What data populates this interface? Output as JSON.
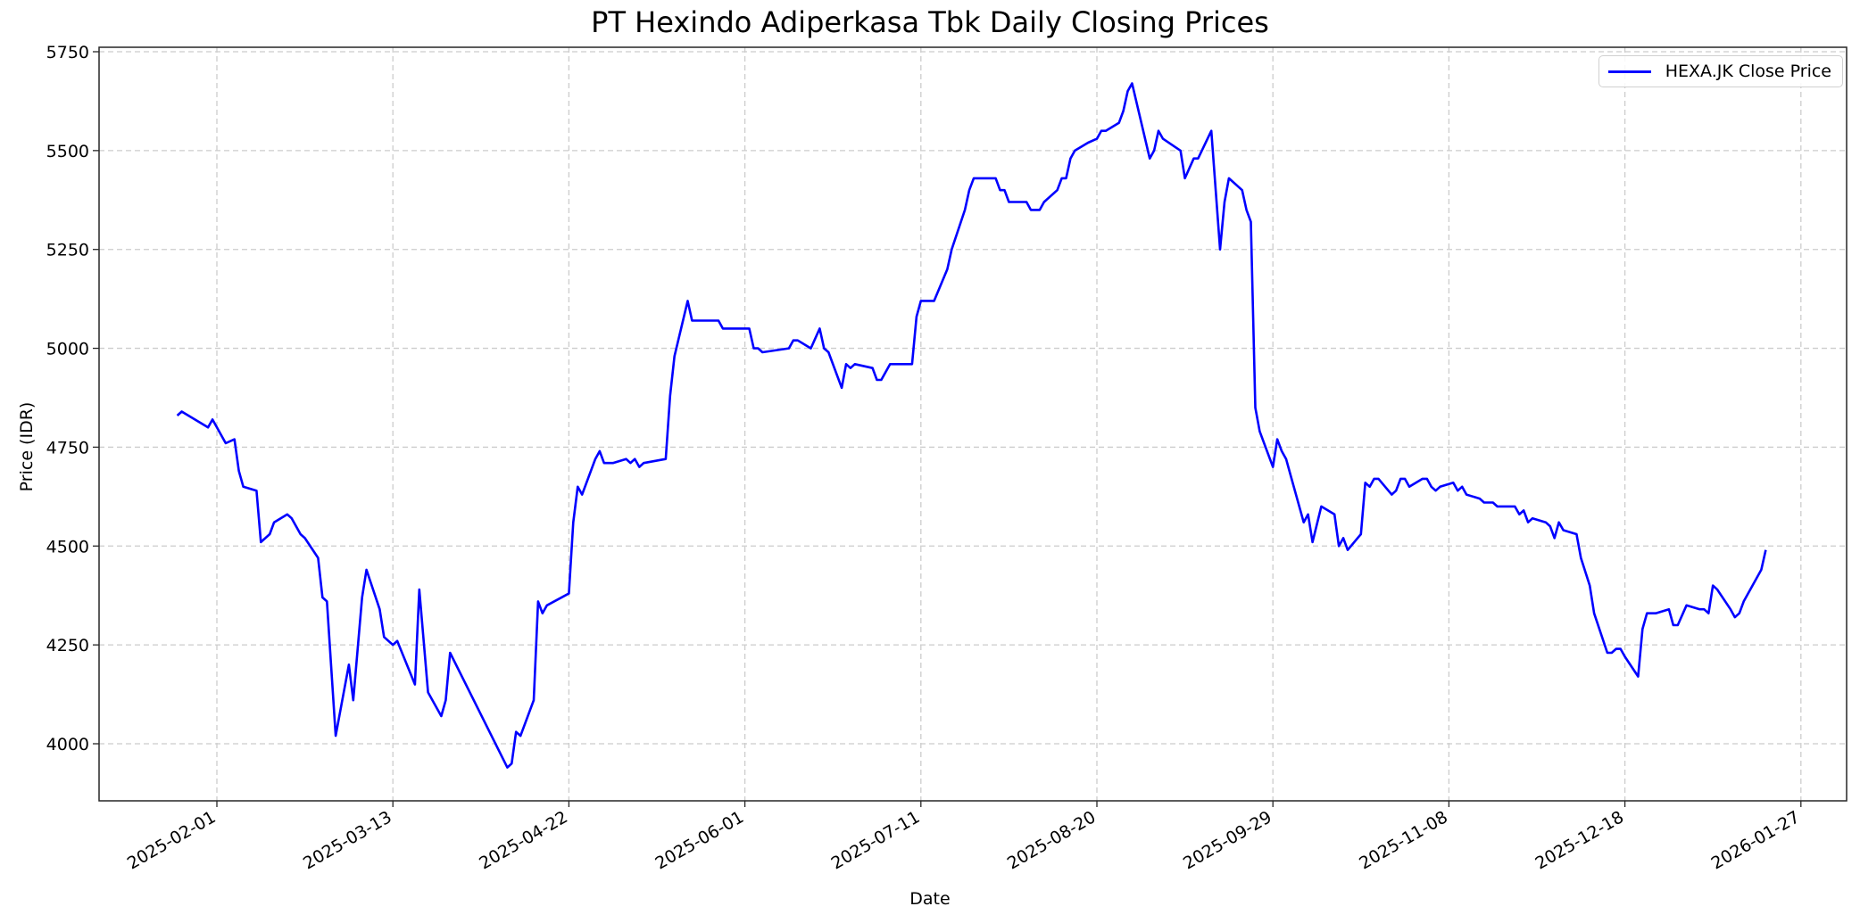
{
  "chart_data": {
    "type": "line",
    "title": "PT Hexindo Adiperkasa Tbk Daily Closing Prices",
    "xlabel": "Date",
    "ylabel": "Price (IDR)",
    "ylim": [
      3850,
      5760
    ],
    "xlim": [
      "2025-01-12",
      "2026-02-04"
    ],
    "yticks": [
      4000,
      4250,
      4500,
      4750,
      5000,
      5250,
      5500,
      5750
    ],
    "xticks": [
      "2025-02-01",
      "2025-03-13",
      "2025-04-22",
      "2025-06-01",
      "2025-07-11",
      "2025-08-20",
      "2025-09-29",
      "2025-11-08",
      "2025-12-18",
      "2026-01-27"
    ],
    "grid": true,
    "legend_position": "upper right",
    "series": [
      {
        "name": "HEXA.JK Close Price",
        "color": "#0000ff",
        "points": [
          [
            "2025-01-23",
            4830
          ],
          [
            "2025-01-24",
            4840
          ],
          [
            "2025-01-30",
            4800
          ],
          [
            "2025-01-31",
            4820
          ],
          [
            "2025-02-03",
            4760
          ],
          [
            "2025-02-05",
            4770
          ],
          [
            "2025-02-06",
            4690
          ],
          [
            "2025-02-07",
            4650
          ],
          [
            "2025-02-10",
            4640
          ],
          [
            "2025-02-11",
            4510
          ],
          [
            "2025-02-13",
            4530
          ],
          [
            "2025-02-14",
            4560
          ],
          [
            "2025-02-17",
            4580
          ],
          [
            "2025-02-18",
            4570
          ],
          [
            "2025-02-20",
            4530
          ],
          [
            "2025-02-21",
            4520
          ],
          [
            "2025-02-24",
            4470
          ],
          [
            "2025-02-25",
            4370
          ],
          [
            "2025-02-26",
            4360
          ],
          [
            "2025-02-28",
            4020
          ],
          [
            "2025-03-03",
            4200
          ],
          [
            "2025-03-04",
            4110
          ],
          [
            "2025-03-06",
            4370
          ],
          [
            "2025-03-07",
            4440
          ],
          [
            "2025-03-10",
            4340
          ],
          [
            "2025-03-11",
            4270
          ],
          [
            "2025-03-13",
            4250
          ],
          [
            "2025-03-14",
            4260
          ],
          [
            "2025-03-18",
            4150
          ],
          [
            "2025-03-19",
            4390
          ],
          [
            "2025-03-21",
            4130
          ],
          [
            "2025-03-24",
            4070
          ],
          [
            "2025-03-25",
            4110
          ],
          [
            "2025-03-26",
            4230
          ],
          [
            "2025-04-08",
            3940
          ],
          [
            "2025-04-09",
            3950
          ],
          [
            "2025-04-10",
            4030
          ],
          [
            "2025-04-11",
            4020
          ],
          [
            "2025-04-14",
            4110
          ],
          [
            "2025-04-15",
            4360
          ],
          [
            "2025-04-16",
            4330
          ],
          [
            "2025-04-17",
            4350
          ],
          [
            "2025-04-22",
            4380
          ],
          [
            "2025-04-23",
            4560
          ],
          [
            "2025-04-24",
            4650
          ],
          [
            "2025-04-25",
            4630
          ],
          [
            "2025-04-28",
            4720
          ],
          [
            "2025-04-29",
            4740
          ],
          [
            "2025-04-30",
            4710
          ],
          [
            "2025-05-02",
            4710
          ],
          [
            "2025-05-05",
            4720
          ],
          [
            "2025-05-06",
            4710
          ],
          [
            "2025-05-07",
            4720
          ],
          [
            "2025-05-08",
            4700
          ],
          [
            "2025-05-09",
            4710
          ],
          [
            "2025-05-14",
            4720
          ],
          [
            "2025-05-15",
            4880
          ],
          [
            "2025-05-16",
            4980
          ],
          [
            "2025-05-19",
            5120
          ],
          [
            "2025-05-20",
            5070
          ],
          [
            "2025-05-26",
            5070
          ],
          [
            "2025-05-27",
            5050
          ],
          [
            "2025-06-02",
            5050
          ],
          [
            "2025-06-03",
            5000
          ],
          [
            "2025-06-04",
            5000
          ],
          [
            "2025-06-05",
            4990
          ],
          [
            "2025-06-11",
            5000
          ],
          [
            "2025-06-12",
            5020
          ],
          [
            "2025-06-13",
            5020
          ],
          [
            "2025-06-16",
            5000
          ],
          [
            "2025-06-18",
            5050
          ],
          [
            "2025-06-19",
            5000
          ],
          [
            "2025-06-20",
            4990
          ],
          [
            "2025-06-23",
            4900
          ],
          [
            "2025-06-24",
            4960
          ],
          [
            "2025-06-25",
            4950
          ],
          [
            "2025-06-26",
            4960
          ],
          [
            "2025-06-30",
            4950
          ],
          [
            "2025-07-01",
            4920
          ],
          [
            "2025-07-02",
            4920
          ],
          [
            "2025-07-04",
            4960
          ],
          [
            "2025-07-09",
            4960
          ],
          [
            "2025-07-10",
            5080
          ],
          [
            "2025-07-11",
            5120
          ],
          [
            "2025-07-14",
            5120
          ],
          [
            "2025-07-17",
            5200
          ],
          [
            "2025-07-18",
            5250
          ],
          [
            "2025-07-21",
            5350
          ],
          [
            "2025-07-22",
            5400
          ],
          [
            "2025-07-23",
            5430
          ],
          [
            "2025-07-28",
            5430
          ],
          [
            "2025-07-29",
            5400
          ],
          [
            "2025-07-30",
            5400
          ],
          [
            "2025-07-31",
            5370
          ],
          [
            "2025-08-04",
            5370
          ],
          [
            "2025-08-05",
            5350
          ],
          [
            "2025-08-07",
            5350
          ],
          [
            "2025-08-08",
            5370
          ],
          [
            "2025-08-11",
            5400
          ],
          [
            "2025-08-12",
            5430
          ],
          [
            "2025-08-13",
            5430
          ],
          [
            "2025-08-14",
            5480
          ],
          [
            "2025-08-15",
            5500
          ],
          [
            "2025-08-18",
            5520
          ],
          [
            "2025-08-20",
            5530
          ],
          [
            "2025-08-21",
            5550
          ],
          [
            "2025-08-22",
            5550
          ],
          [
            "2025-08-25",
            5570
          ],
          [
            "2025-08-26",
            5600
          ],
          [
            "2025-08-27",
            5650
          ],
          [
            "2025-08-28",
            5670
          ],
          [
            "2025-09-01",
            5480
          ],
          [
            "2025-09-02",
            5500
          ],
          [
            "2025-09-03",
            5550
          ],
          [
            "2025-09-04",
            5530
          ],
          [
            "2025-09-08",
            5500
          ],
          [
            "2025-09-09",
            5430
          ],
          [
            "2025-09-11",
            5480
          ],
          [
            "2025-09-12",
            5480
          ],
          [
            "2025-09-15",
            5550
          ],
          [
            "2025-09-17",
            5250
          ],
          [
            "2025-09-18",
            5370
          ],
          [
            "2025-09-19",
            5430
          ],
          [
            "2025-09-22",
            5400
          ],
          [
            "2025-09-23",
            5350
          ],
          [
            "2025-09-24",
            5320
          ],
          [
            "2025-09-25",
            4850
          ],
          [
            "2025-09-26",
            4790
          ],
          [
            "2025-09-29",
            4700
          ],
          [
            "2025-09-30",
            4770
          ],
          [
            "2025-10-01",
            4740
          ],
          [
            "2025-10-02",
            4720
          ],
          [
            "2025-10-03",
            4680
          ],
          [
            "2025-10-06",
            4560
          ],
          [
            "2025-10-07",
            4580
          ],
          [
            "2025-10-08",
            4510
          ],
          [
            "2025-10-10",
            4600
          ],
          [
            "2025-10-13",
            4580
          ],
          [
            "2025-10-14",
            4500
          ],
          [
            "2025-10-15",
            4520
          ],
          [
            "2025-10-16",
            4490
          ],
          [
            "2025-10-19",
            4530
          ],
          [
            "2025-10-20",
            4660
          ],
          [
            "2025-10-21",
            4650
          ],
          [
            "2025-10-22",
            4670
          ],
          [
            "2025-10-23",
            4670
          ],
          [
            "2025-10-26",
            4630
          ],
          [
            "2025-10-27",
            4640
          ],
          [
            "2025-10-28",
            4670
          ],
          [
            "2025-10-29",
            4670
          ],
          [
            "2025-10-30",
            4650
          ],
          [
            "2025-11-02",
            4670
          ],
          [
            "2025-11-03",
            4670
          ],
          [
            "2025-11-04",
            4650
          ],
          [
            "2025-11-05",
            4640
          ],
          [
            "2025-11-06",
            4650
          ],
          [
            "2025-11-09",
            4660
          ],
          [
            "2025-11-10",
            4640
          ],
          [
            "2025-11-11",
            4650
          ],
          [
            "2025-11-12",
            4630
          ],
          [
            "2025-11-15",
            4620
          ],
          [
            "2025-11-16",
            4610
          ],
          [
            "2025-11-18",
            4610
          ],
          [
            "2025-11-19",
            4600
          ],
          [
            "2025-11-23",
            4600
          ],
          [
            "2025-11-24",
            4580
          ],
          [
            "2025-11-25",
            4590
          ],
          [
            "2025-11-26",
            4560
          ],
          [
            "2025-11-27",
            4570
          ],
          [
            "2025-11-30",
            4560
          ],
          [
            "2025-12-01",
            4550
          ],
          [
            "2025-12-02",
            4520
          ],
          [
            "2025-12-03",
            4560
          ],
          [
            "2025-12-04",
            4540
          ],
          [
            "2025-12-07",
            4530
          ],
          [
            "2025-12-08",
            4470
          ],
          [
            "2025-12-10",
            4400
          ],
          [
            "2025-12-11",
            4330
          ],
          [
            "2025-12-14",
            4230
          ],
          [
            "2025-12-15",
            4230
          ],
          [
            "2025-12-16",
            4240
          ],
          [
            "2025-12-17",
            4240
          ],
          [
            "2025-12-18",
            4220
          ],
          [
            "2025-12-21",
            4170
          ],
          [
            "2025-12-22",
            4290
          ],
          [
            "2025-12-23",
            4330
          ],
          [
            "2025-12-25",
            4330
          ],
          [
            "2025-12-28",
            4340
          ],
          [
            "2025-12-29",
            4300
          ],
          [
            "2025-12-30",
            4300
          ],
          [
            "2026-01-01",
            4350
          ],
          [
            "2026-01-04",
            4340
          ],
          [
            "2026-01-05",
            4340
          ],
          [
            "2026-01-06",
            4330
          ],
          [
            "2026-01-07",
            4400
          ],
          [
            "2026-01-08",
            4390
          ],
          [
            "2026-01-11",
            4340
          ],
          [
            "2026-01-12",
            4320
          ],
          [
            "2026-01-13",
            4330
          ],
          [
            "2026-01-14",
            4360
          ],
          [
            "2026-01-18",
            4440
          ],
          [
            "2026-01-19",
            4490
          ]
        ]
      }
    ]
  }
}
